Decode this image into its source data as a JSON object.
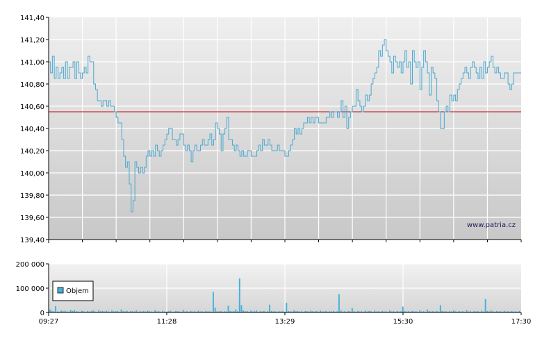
{
  "watermark": "www.patria.cz",
  "colors": {
    "price_line": "#4aa8d0",
    "reference_line": "#cc0000",
    "volume_bar": "#45b0d8",
    "grid": "#ffffff",
    "plot_top": "#efefef",
    "plot_bottom": "#c8c8c8",
    "axis": "#000000"
  },
  "chart_data": [
    {
      "type": "line",
      "panel": "price",
      "ylim": [
        139.4,
        141.4
      ],
      "y_ticks": [
        "141,40",
        "141,20",
        "141,00",
        "140,80",
        "140,60",
        "140,40",
        "140,20",
        "140,00",
        "139,80",
        "139,60",
        "139,40"
      ],
      "reference_value": 140.55,
      "grid": true,
      "series": [
        {
          "values": [
            141.0,
            140.9,
            141.05,
            140.85,
            140.95,
            140.85,
            140.9,
            140.95,
            140.85,
            141.0,
            140.85,
            140.95,
            140.95,
            141.0,
            140.85,
            141.0,
            140.9,
            140.85,
            140.9,
            140.95,
            140.9,
            141.05,
            141.0,
            141.0,
            140.8,
            140.75,
            140.65,
            140.65,
            140.6,
            140.65,
            140.65,
            140.6,
            140.65,
            140.6,
            140.6,
            140.55,
            140.5,
            140.45,
            140.45,
            140.3,
            140.15,
            140.05,
            140.1,
            139.9,
            139.65,
            139.75,
            140.1,
            140.05,
            140.0,
            140.05,
            140.0,
            140.05,
            140.15,
            140.2,
            140.15,
            140.2,
            140.15,
            140.25,
            140.2,
            140.15,
            140.2,
            140.25,
            140.3,
            140.35,
            140.4,
            140.4,
            140.3,
            140.3,
            140.25,
            140.3,
            140.35,
            140.35,
            140.25,
            140.2,
            140.25,
            140.2,
            140.1,
            140.2,
            140.25,
            140.2,
            140.2,
            140.25,
            140.3,
            140.25,
            140.25,
            140.3,
            140.35,
            140.25,
            140.3,
            140.45,
            140.4,
            140.35,
            140.2,
            140.35,
            140.4,
            140.5,
            140.3,
            140.3,
            140.25,
            140.2,
            140.25,
            140.2,
            140.15,
            140.2,
            140.15,
            140.15,
            140.2,
            140.2,
            140.15,
            140.15,
            140.15,
            140.2,
            140.25,
            140.2,
            140.3,
            140.25,
            140.25,
            140.3,
            140.25,
            140.2,
            140.2,
            140.2,
            140.25,
            140.2,
            140.2,
            140.2,
            140.15,
            140.15,
            140.2,
            140.25,
            140.3,
            140.4,
            140.35,
            140.4,
            140.35,
            140.4,
            140.45,
            140.45,
            140.5,
            140.45,
            140.5,
            140.45,
            140.5,
            140.5,
            140.45,
            140.45,
            140.45,
            140.45,
            140.5,
            140.5,
            140.55,
            140.5,
            140.55,
            140.55,
            140.5,
            140.55,
            140.65,
            140.5,
            140.6,
            140.4,
            140.5,
            140.55,
            140.6,
            140.6,
            140.75,
            140.65,
            140.6,
            140.55,
            140.6,
            140.7,
            140.65,
            140.7,
            140.8,
            140.85,
            140.9,
            140.95,
            141.1,
            141.05,
            141.15,
            141.2,
            141.1,
            141.05,
            141.0,
            140.9,
            141.05,
            141.0,
            140.95,
            141.0,
            140.9,
            141.0,
            141.1,
            140.95,
            141.0,
            140.8,
            141.1,
            141.0,
            140.95,
            141.0,
            140.75,
            140.95,
            141.1,
            141.0,
            140.9,
            140.7,
            140.95,
            140.9,
            140.85,
            140.65,
            140.55,
            140.4,
            140.4,
            140.55,
            140.6,
            140.55,
            140.7,
            140.65,
            140.7,
            140.65,
            140.75,
            140.8,
            140.85,
            140.9,
            140.95,
            140.9,
            140.85,
            140.95,
            141.0,
            140.95,
            140.9,
            140.85,
            140.95,
            140.85,
            141.0,
            140.9,
            140.95,
            141.0,
            141.05,
            140.95,
            140.9,
            140.95,
            140.9,
            140.85,
            140.85,
            140.9,
            140.9,
            140.8,
            140.75,
            140.8,
            140.9,
            140.9,
            140.9,
            140.9,
            140.9
          ]
        }
      ]
    },
    {
      "type": "bar",
      "panel": "volume",
      "ylim": [
        0,
        200000
      ],
      "y_ticks": [
        "200 000",
        "100 000",
        "0"
      ],
      "x_ticks": [
        "09:27",
        "11:28",
        "13:29",
        "15:30",
        "17:30"
      ],
      "legend": "Objem",
      "legend_position": "left",
      "grid": true,
      "series": [
        {
          "name": "Objem",
          "values": [
            12000,
            6000,
            5000,
            26000,
            4000,
            3000,
            8000,
            5000,
            7000,
            4000,
            3000,
            10000,
            6000,
            9000,
            5000,
            4000,
            3000,
            7000,
            5000,
            2000,
            6000,
            4000,
            5000,
            8000,
            4000,
            3000,
            9000,
            5000,
            6000,
            4000,
            7000,
            5000,
            3000,
            8000,
            4000,
            5000,
            6000,
            3000,
            12000,
            5000,
            4000,
            7000,
            3000,
            6000,
            5000,
            4000,
            8000,
            3000,
            5000,
            4000,
            6000,
            3000,
            7000,
            5000,
            4000,
            3000,
            9000,
            4000,
            5000,
            3000,
            6000,
            4000,
            3000,
            5000,
            7000,
            4000,
            3000,
            6000,
            5000,
            4000,
            3000,
            10000,
            4000,
            5000,
            3000,
            6000,
            4000,
            5000,
            3000,
            7000,
            4000,
            5000,
            3000,
            6000,
            4000,
            5000,
            3000,
            85000,
            20000,
            5000,
            4000,
            6000,
            3000,
            5000,
            4000,
            28000,
            6000,
            4000,
            5000,
            12000,
            5000,
            140000,
            30000,
            8000,
            5000,
            6000,
            3000,
            7000,
            4000,
            5000,
            8000,
            3000,
            5000,
            4000,
            6000,
            3000,
            5000,
            32000,
            6000,
            4000,
            5000,
            3000,
            6000,
            4000,
            5000,
            3000,
            40000,
            6000,
            5000,
            4000,
            8000,
            5000,
            6000,
            4000,
            5000,
            3000,
            6000,
            5000,
            4000,
            7000,
            5000,
            4000,
            6000,
            3000,
            8000,
            5000,
            4000,
            6000,
            3000,
            5000,
            4000,
            6000,
            3000,
            5000,
            75000,
            8000,
            4000,
            5000,
            3000,
            6000,
            4000,
            18000,
            5000,
            3000,
            6000,
            4000,
            5000,
            3000,
            8000,
            4000,
            6000,
            5000,
            3000,
            7000,
            4000,
            5000,
            3000,
            6000,
            4000,
            5000,
            3000,
            8000,
            4000,
            5000,
            3000,
            6000,
            4000,
            5000,
            24000,
            6000,
            4000,
            5000,
            3000,
            6000,
            4000,
            5000,
            3000,
            8000,
            4000,
            5000,
            3000,
            12000,
            6000,
            4000,
            5000,
            3000,
            6000,
            4000,
            30000,
            6000,
            4000,
            5000,
            3000,
            6000,
            4000,
            8000,
            5000,
            3000,
            6000,
            4000,
            5000,
            3000,
            9000,
            4000,
            5000,
            3000,
            6000,
            4000,
            5000,
            3000,
            7000,
            4000,
            55000,
            6000,
            4000,
            8000,
            5000,
            3000,
            6000,
            4000,
            5000,
            3000,
            7000,
            4000,
            5000,
            3000,
            6000,
            4000,
            5000,
            3000,
            6000
          ]
        }
      ]
    }
  ]
}
